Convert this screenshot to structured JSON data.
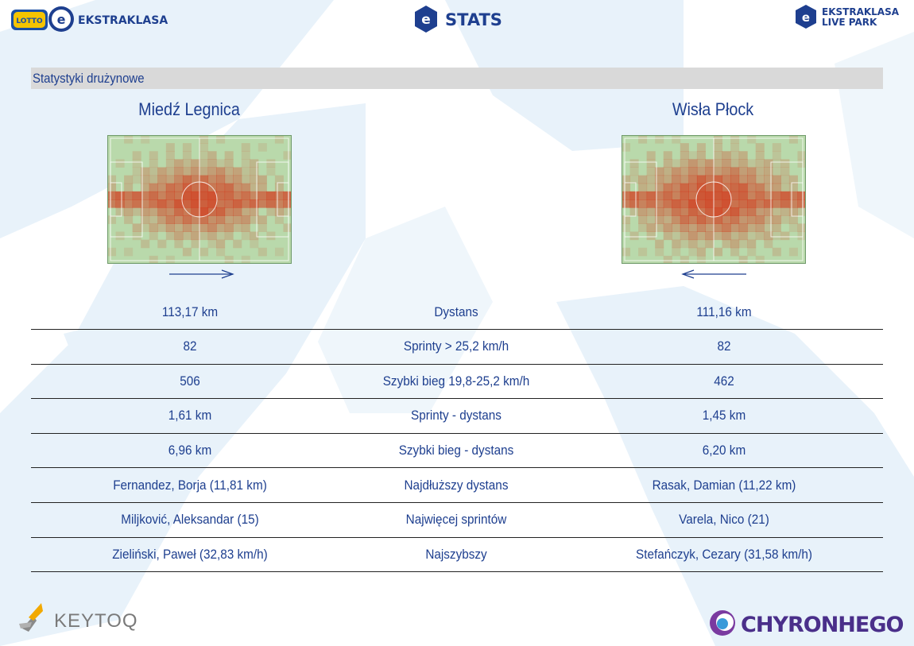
{
  "header": {
    "left_logo_text": "EKSTRAKLASA",
    "left_logo_badge": "LOTTO",
    "center_logo_text": "STATS",
    "right_logo_line1": "EKSTRAKLASA",
    "right_logo_line2": "LIVE PARK"
  },
  "section": {
    "title": "Statystyki drużynowe"
  },
  "teams": {
    "home": "Miedź Legnica",
    "away": "Wisła Płock"
  },
  "stats_rows": [
    {
      "home": "113,17 km",
      "label": "Dystans",
      "away": "111,16 km"
    },
    {
      "home": "82",
      "label": "Sprinty > 25,2 km/h",
      "away": "82"
    },
    {
      "home": "506",
      "label": "Szybki bieg 19,8-25,2 km/h",
      "away": "462"
    },
    {
      "home": "1,61 km",
      "label": "Sprinty - dystans",
      "away": "1,45 km"
    },
    {
      "home": "6,96 km",
      "label": "Szybki bieg - dystans",
      "away": "6,20 km"
    },
    {
      "home": "Fernandez, Borja (11,81 km)",
      "label": "Najdłuższy dystans",
      "away": "Rasak, Damian (11,22 km)"
    },
    {
      "home": "Miljković, Aleksandar (15)",
      "label": "Najwięcej sprintów",
      "away": "Varela, Nico (21)"
    },
    {
      "home": "Zieliński, Paweł (32,83 km/h)",
      "label": "Najszybszy",
      "away": "Stefańczyk, Cezary (31,58 km/h)"
    }
  ],
  "footer": {
    "left_logo_text": "KEYTOQ",
    "right_logo_text": "CHYRONHEGO"
  },
  "colors": {
    "primary_text": "#1e3f8f",
    "section_bar": "#d9d9d9",
    "pitch_green": "#b7d8a8",
    "heat_red": "#d23a1c",
    "watermark": "#e7f1f9"
  },
  "icons": {
    "home_direction": "arrow-right-icon",
    "away_direction": "arrow-left-icon"
  }
}
